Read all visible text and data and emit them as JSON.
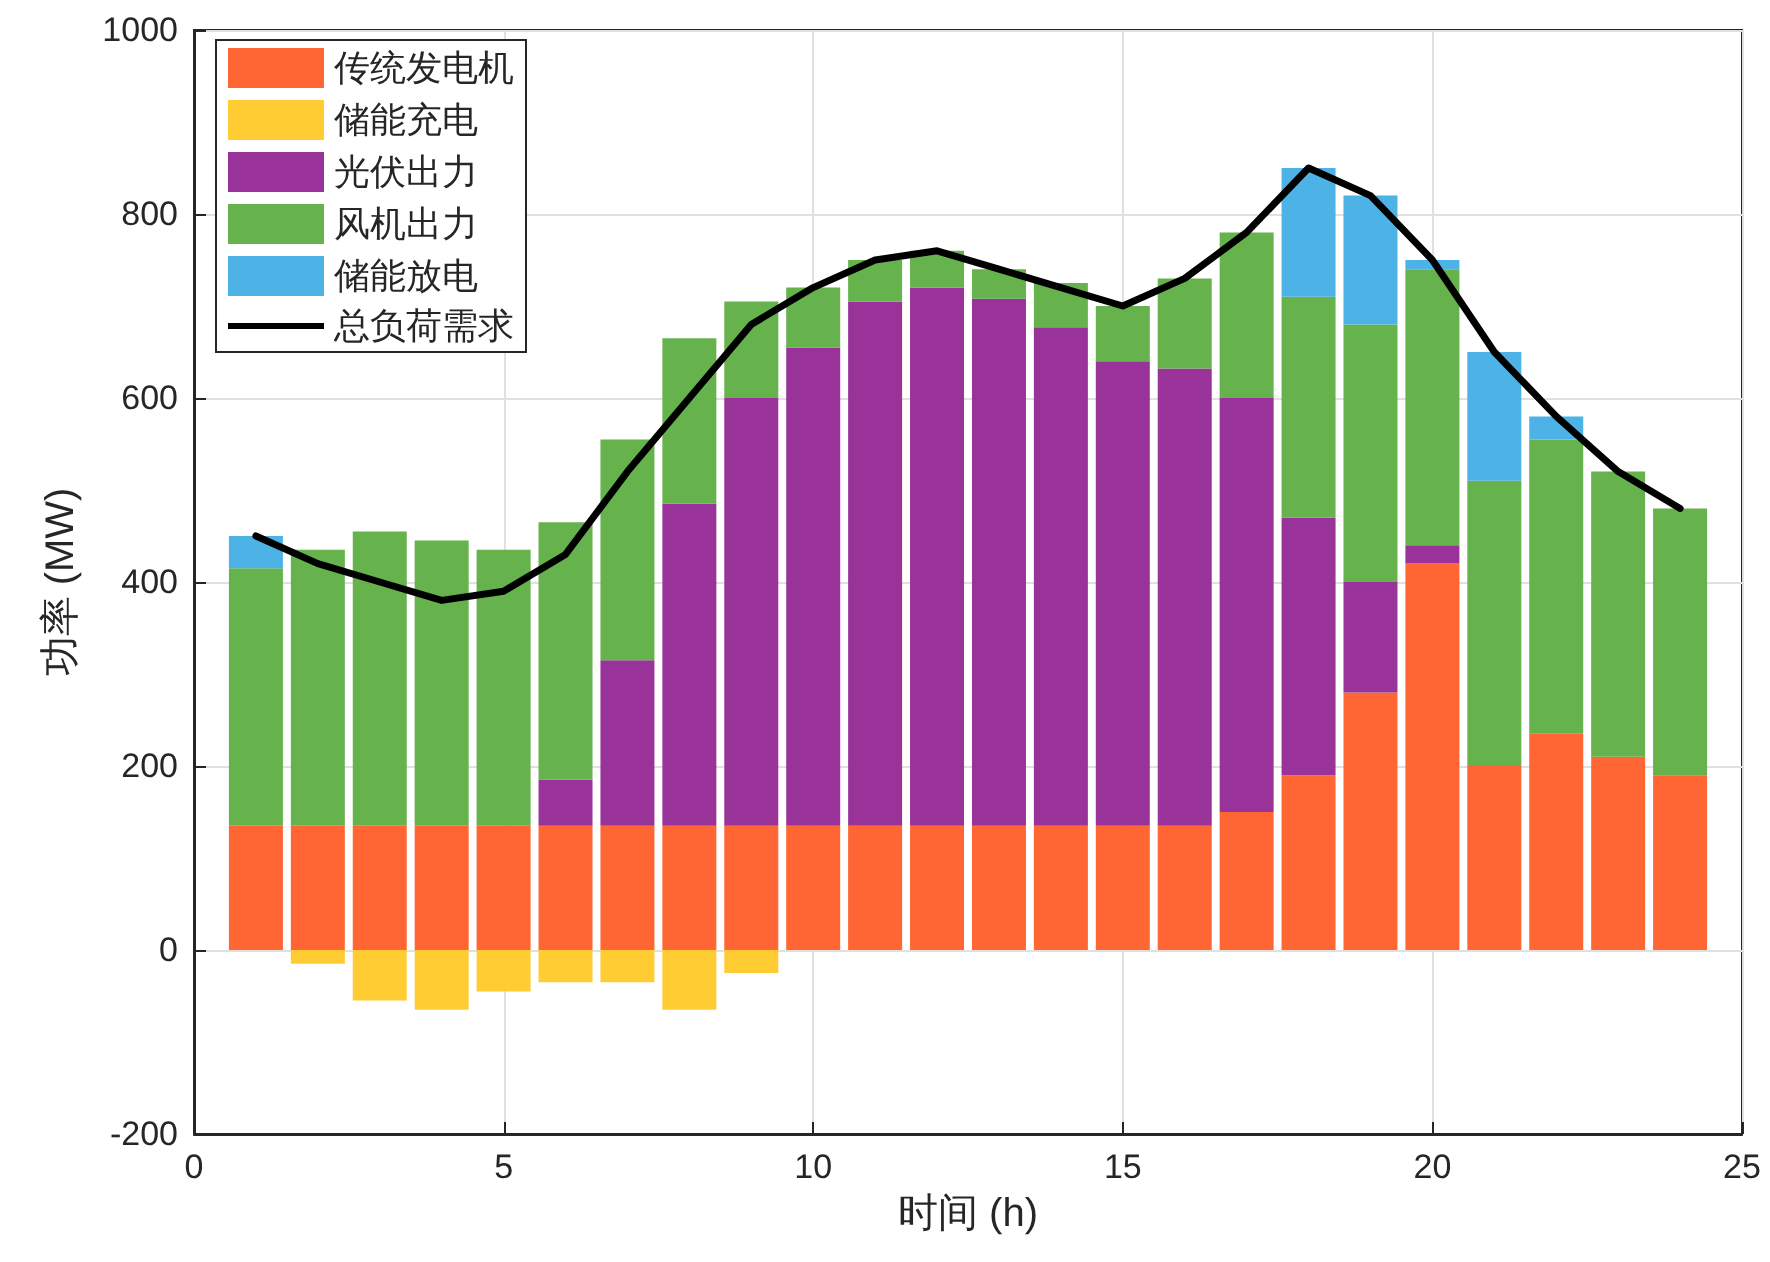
{
  "chart_data": {
    "type": "bar",
    "stacked": true,
    "xlabel": "时间 (h)",
    "ylabel": "功率 (MW)",
    "x": [
      1,
      2,
      3,
      4,
      5,
      6,
      7,
      8,
      9,
      10,
      11,
      12,
      13,
      14,
      15,
      16,
      17,
      18,
      19,
      20,
      21,
      22,
      23,
      24
    ],
    "xlim": [
      0,
      25
    ],
    "xticks": [
      0,
      5,
      10,
      15,
      20,
      25
    ],
    "ylim": [
      -200,
      1000
    ],
    "yticks": [
      -200,
      0,
      200,
      400,
      600,
      800,
      1000
    ],
    "grid": true,
    "legend": "top left",
    "series": [
      {
        "name": "传统发电机",
        "color": "#ff6633",
        "values": [
          135,
          135,
          135,
          135,
          135,
          135,
          135,
          135,
          135,
          135,
          135,
          135,
          135,
          135,
          135,
          135,
          150,
          190,
          280,
          420,
          200,
          235,
          210,
          190
        ]
      },
      {
        "name": "储能充电",
        "color": "#ffcc33",
        "values": [
          null,
          -15,
          -55,
          -65,
          -45,
          -35,
          -35,
          -65,
          -25,
          null,
          null,
          null,
          null,
          null,
          null,
          null,
          null,
          null,
          null,
          null,
          null,
          null,
          null,
          null
        ]
      },
      {
        "name": "光伏出力",
        "color": "#993399",
        "values": [
          null,
          null,
          null,
          null,
          null,
          50,
          180,
          350,
          465,
          520,
          570,
          585,
          573,
          542,
          505,
          497,
          450,
          280,
          120,
          20,
          null,
          null,
          null,
          null
        ]
      },
      {
        "name": "风机出力",
        "color": "#66b24d",
        "values": [
          280,
          300,
          320,
          310,
          300,
          280,
          240,
          180,
          105,
          65,
          45,
          40,
          32,
          48,
          60,
          98,
          180,
          240,
          280,
          300,
          310,
          320,
          310,
          290
        ]
      },
      {
        "name": "储能放电",
        "color": "#4db3e6",
        "values": [
          35,
          null,
          null,
          null,
          null,
          null,
          null,
          null,
          null,
          null,
          null,
          null,
          null,
          null,
          null,
          null,
          null,
          140,
          140,
          10,
          140,
          25,
          null,
          null
        ]
      },
      {
        "name": "总负荷需求",
        "type": "line",
        "color": "#000000",
        "marker": "none",
        "line_style": "solid",
        "values": [
          450,
          420,
          400,
          380,
          390,
          430,
          520,
          600,
          680,
          720,
          750,
          760,
          740,
          720,
          700,
          730,
          780,
          850,
          820,
          750,
          650,
          580,
          520,
          480
        ]
      }
    ]
  }
}
